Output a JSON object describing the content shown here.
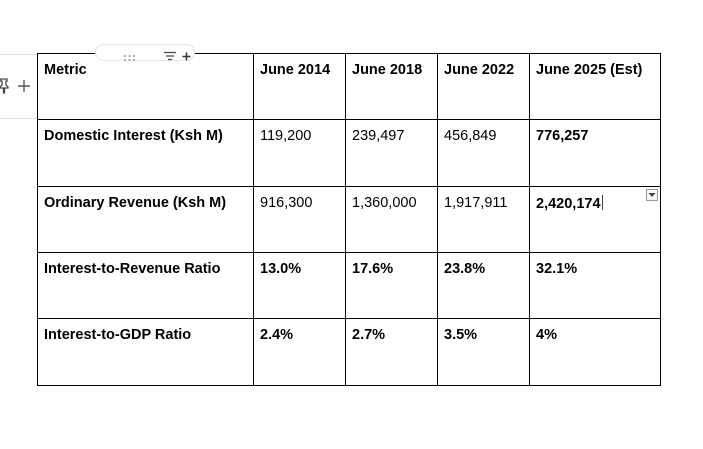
{
  "table": {
    "columns": [
      "Metric",
      "June 2014",
      "June 2018",
      "June 2022",
      "June 2025 (Est)"
    ],
    "rows": [
      {
        "metric": "Domestic Interest (Ksh M)",
        "values": [
          "119,200",
          "239,497",
          "456,849",
          "776,257"
        ]
      },
      {
        "metric": "Ordinary Revenue (Ksh M)",
        "values": [
          "916,300",
          "1,360,000",
          "1,917,911",
          "2,420,174"
        ]
      },
      {
        "metric": "Interest-to-Revenue Ratio",
        "values": [
          "13.0%",
          "17.6%",
          "23.8%",
          "32.1%"
        ]
      },
      {
        "metric": "Interest-to-GDP Ratio",
        "values": [
          "2.4%",
          "2.7%",
          "3.5%",
          "4%"
        ]
      }
    ]
  },
  "icons": {
    "pin": "pin-icon",
    "add_row": "plus-icon",
    "drag_handle": "drag-handle-icon",
    "filter": "filter-icon",
    "add_column": "plus-icon",
    "cell_menu": "dropdown-icon"
  },
  "colors": {
    "border": "#000000",
    "gutter_line": "#e3e3e3",
    "icon": "#555555"
  }
}
